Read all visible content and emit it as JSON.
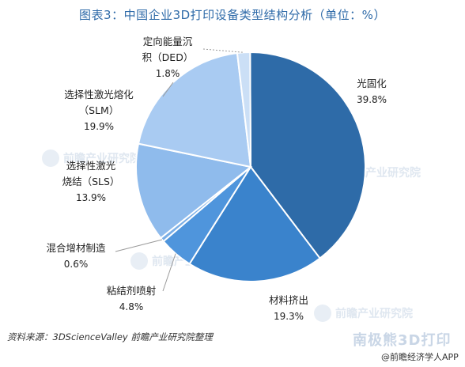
{
  "title": "图表3：中国企业3D打印设备类型结构分析（单位：%）",
  "source": "资料来源：3DScienceValley 前瞻产业研究院整理",
  "watermark": {
    "brand": "南极熊3D打印",
    "app": "@前瞻经济学人APP",
    "faint": "前瞻产业研究院"
  },
  "colors": {
    "光固化": "#2e6ba8",
    "材料挤出": "#3a83cc",
    "粘结剂喷射": "#4f95dc",
    "混合增材制造": "#7aaee6",
    "选择性激光烧结": "#8fbbec",
    "选择性激光熔化": "#a9cbf2",
    "定向能量沉积": "#cbdff6"
  },
  "chart_data": {
    "type": "pie",
    "title": "图表3：中国企业3D打印设备类型结构分析（单位：%）",
    "unit": "%",
    "slices": [
      {
        "label": "光固化",
        "value": 39.8,
        "pct_text": "39.8%"
      },
      {
        "label": "材料挤出",
        "value": 19.3,
        "pct_text": "19.3%"
      },
      {
        "label": "粘结剂喷射",
        "value": 4.8,
        "pct_text": "4.8%"
      },
      {
        "label": "混合增材制造",
        "value": 0.6,
        "pct_text": "0.6%"
      },
      {
        "label": "选择性激光烧结（SLS）",
        "value": 13.9,
        "pct_text": "13.9%"
      },
      {
        "label": "选择性激光熔化（SLM）",
        "value": 19.9,
        "pct_text": "19.9%"
      },
      {
        "label": "定向能量沉积（DED）",
        "value": 1.8,
        "pct_text": "1.8%"
      }
    ]
  }
}
